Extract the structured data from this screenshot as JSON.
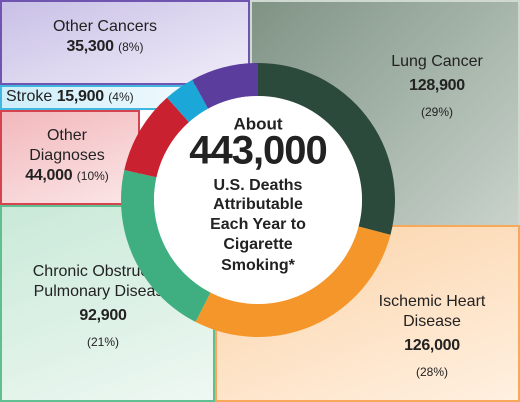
{
  "chart_data": {
    "type": "donut",
    "categories": [
      "Lung Cancer",
      "Ischemic Heart Disease",
      "Chronic Obstructive Pulmonary Disease",
      "Other Diagnoses",
      "Stroke",
      "Other Cancers"
    ],
    "values": [
      128900,
      126000,
      92900,
      44000,
      15900,
      35300
    ],
    "value_labels": [
      "128,900",
      "126,000",
      "92,900",
      "44,000",
      "15,900",
      "35,300"
    ],
    "percent_labels": [
      "(29%)",
      "(28%)",
      "(21%)",
      "(10%)",
      "(4%)",
      "(8%)"
    ],
    "colors": [
      "#2c4a3b",
      "#f5962b",
      "#3fae80",
      "#c9212f",
      "#1ba7d8",
      "#5b3d9e"
    ],
    "center_text": [
      "About",
      "443,000",
      "U.S. Deaths",
      "Attributable",
      "Each Year to",
      "Cigarette",
      "Smoking*"
    ]
  }
}
